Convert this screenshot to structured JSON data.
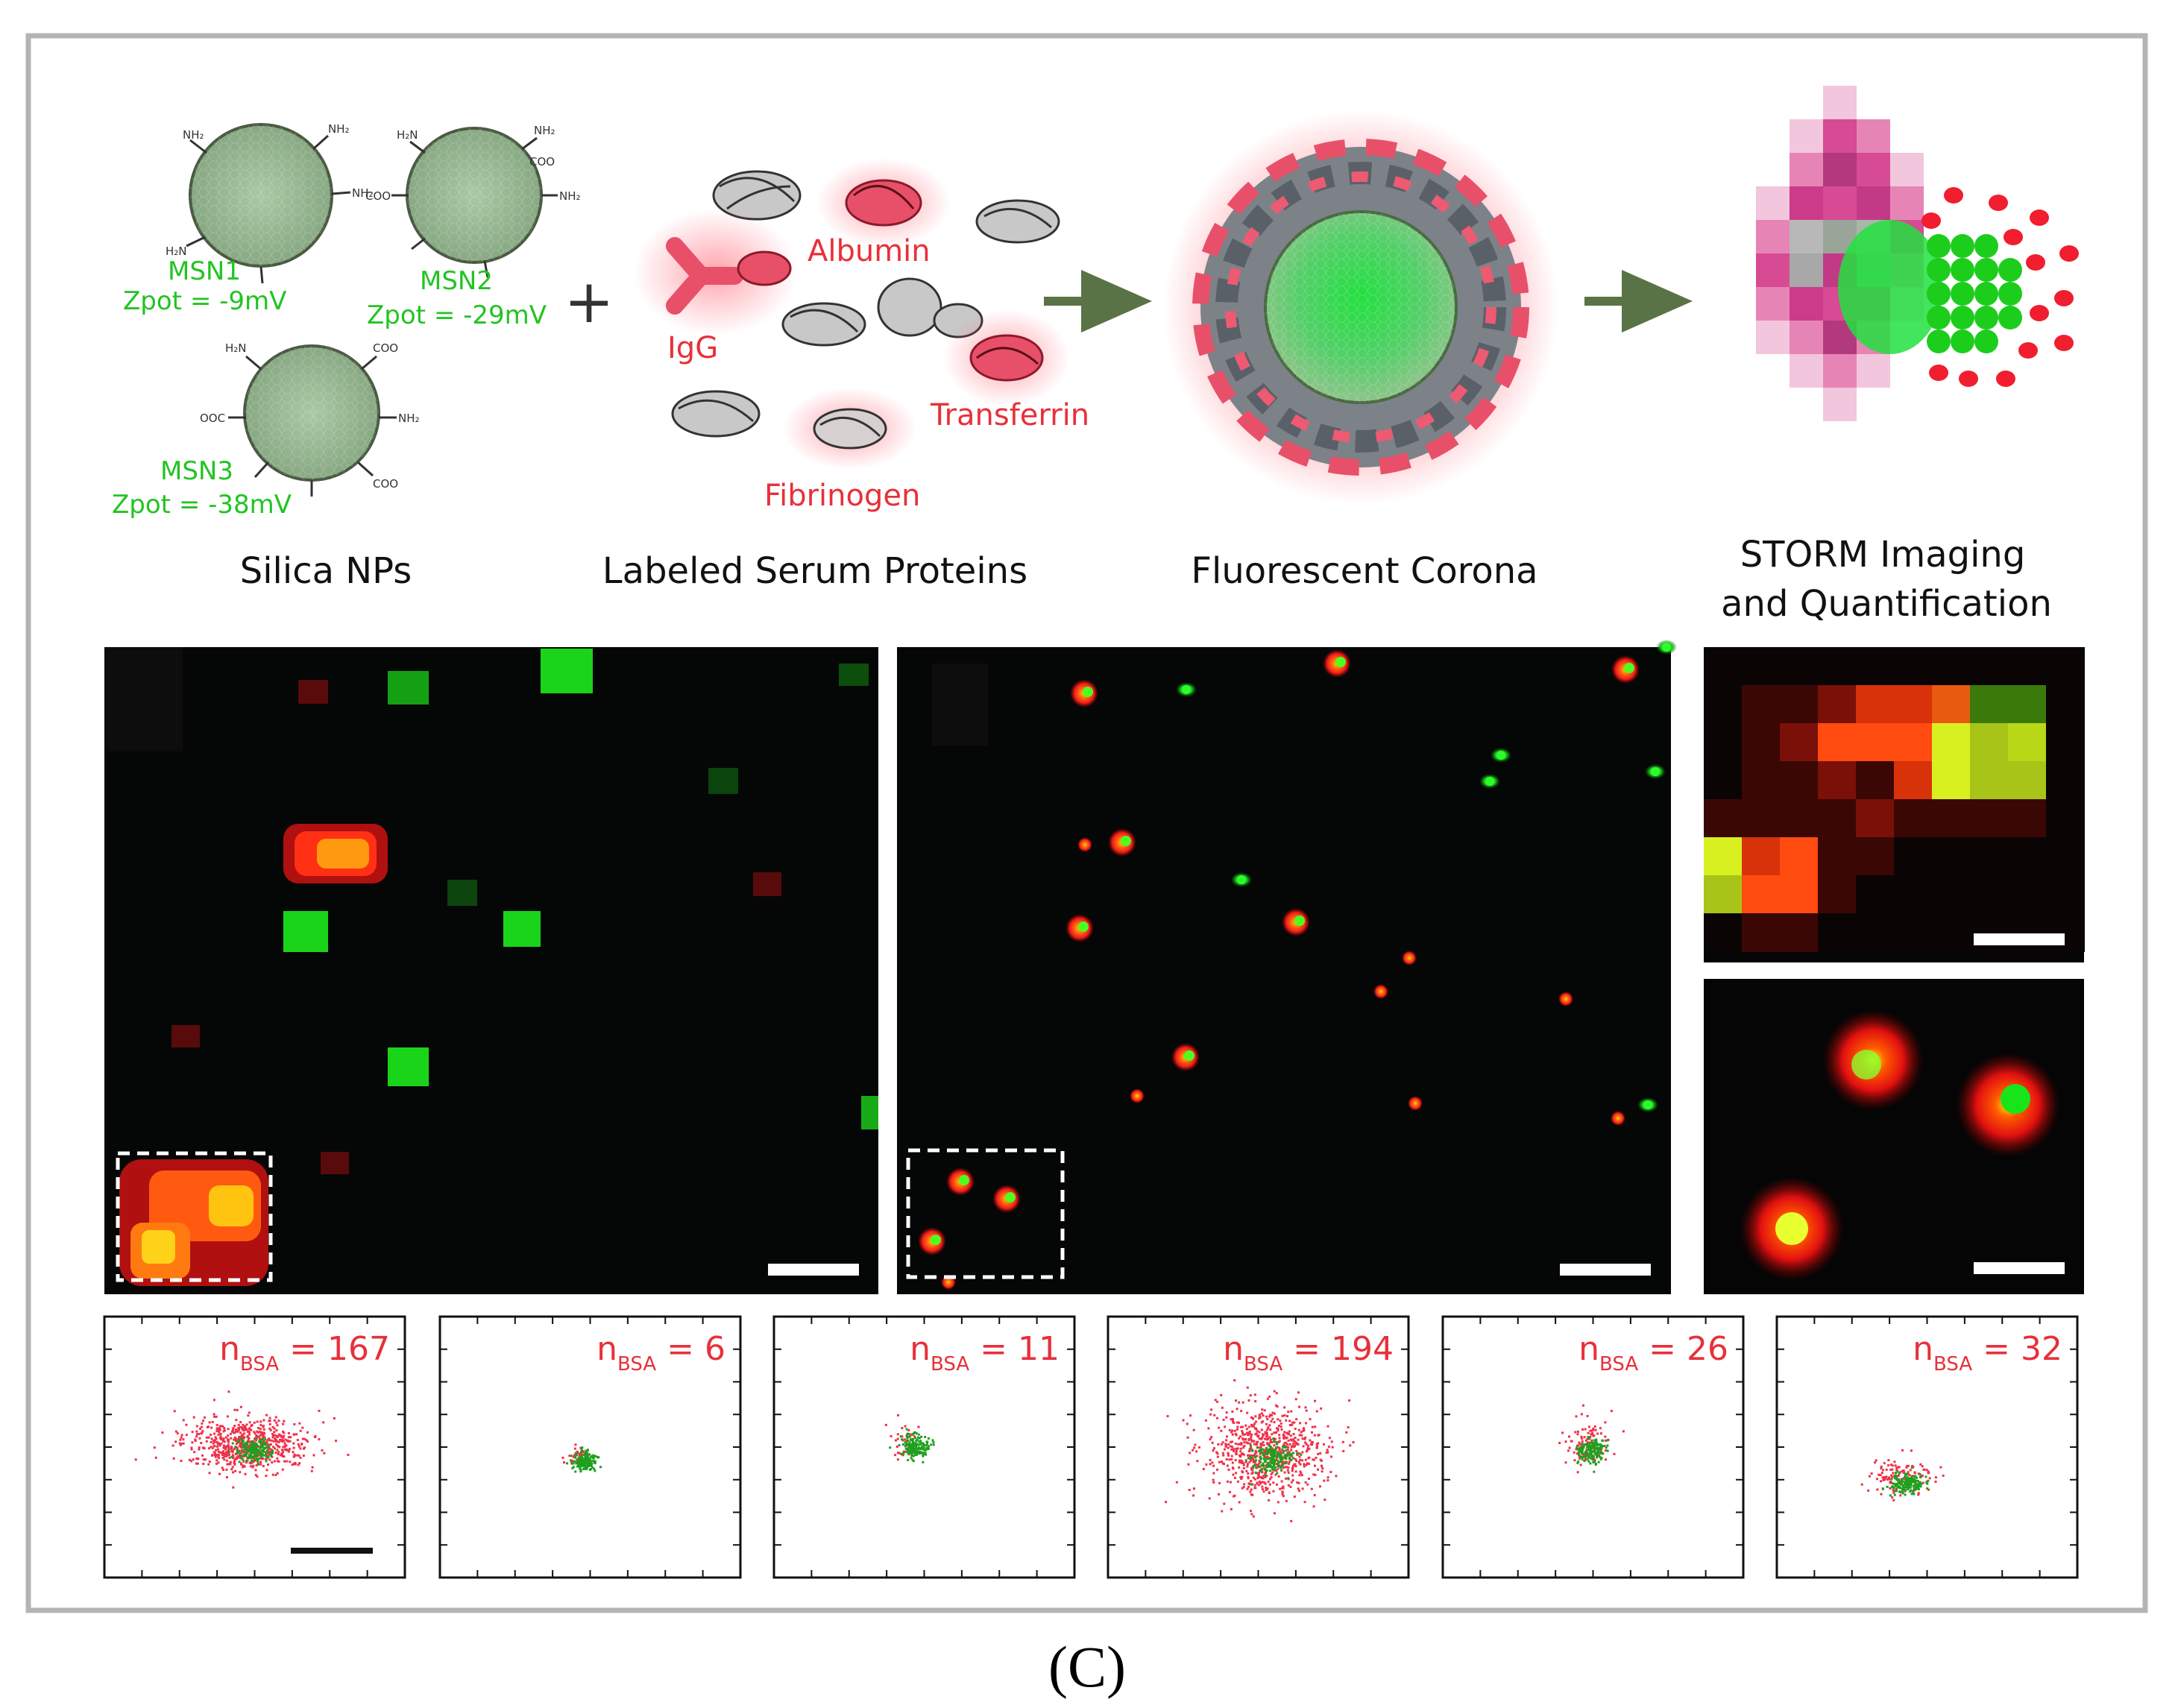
{
  "figure": {
    "panel_label": "(C)",
    "nanoparticles": [
      {
        "name": "MSN1",
        "zpot": "Zpot = -9mV"
      },
      {
        "name": "MSN2",
        "zpot": "Zpot = -29mV"
      },
      {
        "name": "MSN3",
        "zpot": "Zpot = -38mV"
      }
    ],
    "plus_sign": "+",
    "proteins": [
      "Albumin",
      "IgG",
      "Transferrin",
      "Fibrinogen"
    ],
    "stage_titles": {
      "silica": "Silica NPs",
      "labeled": "Labeled Serum Proteins",
      "corona": "Fluorescent Corona",
      "storm_line1": "STORM Imaging",
      "storm_line2": "and Quantification"
    },
    "counts": [
      {
        "sub": "BSA",
        "value": "167"
      },
      {
        "sub": "BSA",
        "value": "6"
      },
      {
        "sub": "BSA",
        "value": "11"
      },
      {
        "sub": "BSA",
        "value": "194"
      },
      {
        "sub": "BSA",
        "value": "26"
      },
      {
        "sub": "BSA",
        "value": "32"
      }
    ],
    "count_prefix": "n",
    "count_eq": " = ",
    "colors": {
      "label_green": "#22c422",
      "label_red": "#e8303a",
      "arrow": "#5a7346",
      "particle": "#8fb08a",
      "frame": "#b4b4b4"
    }
  }
}
